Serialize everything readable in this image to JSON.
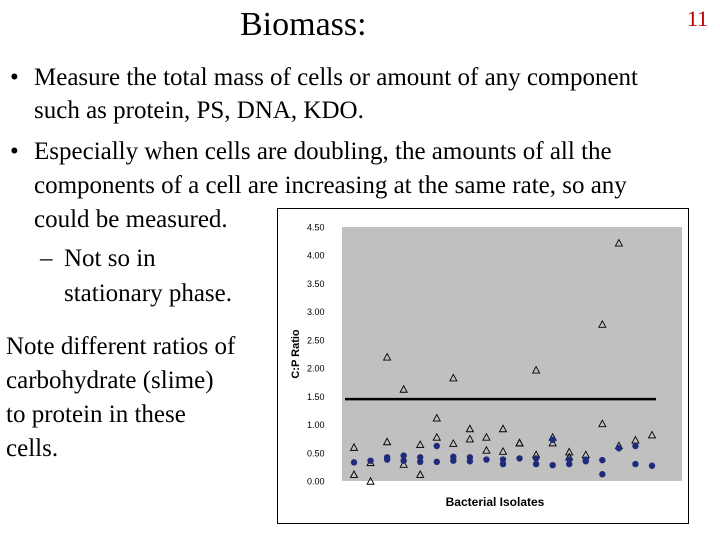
{
  "slide": {
    "title": "Biomass:",
    "number": "11",
    "bullets": [
      {
        "mark": "•",
        "lines": [
          "Measure the total mass of cells or amount of any component",
          "such as protein, PS, DNA, KDO."
        ]
      },
      {
        "mark": "•",
        "lines": [
          "Especially when cells are doubling, the amounts of all the",
          "components of a cell are increasing at the same rate, so any",
          "could be measured."
        ]
      },
      {
        "mark": "–",
        "lines": [
          "Not so in",
          "stationary phase."
        ]
      }
    ],
    "note": [
      "Note different ratios of",
      "carbohydrate (slime)",
      "to protein in these",
      "cells."
    ]
  },
  "chart_data": {
    "type": "scatter",
    "xlabel": "Bacterial Isolates",
    "ylabel": "C:P Ratio",
    "ylim": [
      0,
      4.5
    ],
    "yticks": [
      "0.00",
      "0.50",
      "1.00",
      "1.50",
      "2.00",
      "2.50",
      "3.00",
      "3.50",
      "4.00",
      "4.50"
    ],
    "xlim": [
      0,
      19
    ],
    "grid": false,
    "legend": "none",
    "plot_bg": "#c0c0c0",
    "reference_line": 1.45,
    "series": [
      {
        "marker": "triangle-open",
        "color": "#000000",
        "points": [
          [
            1,
            0.6
          ],
          [
            1,
            0.12
          ],
          [
            2,
            0.33
          ],
          [
            2,
            0.0
          ],
          [
            3,
            2.2
          ],
          [
            3,
            0.7
          ],
          [
            4,
            1.63
          ],
          [
            4,
            0.3
          ],
          [
            5,
            0.65
          ],
          [
            5,
            0.12
          ],
          [
            6,
            1.12
          ],
          [
            6,
            0.78
          ],
          [
            7,
            1.83
          ],
          [
            7,
            0.67
          ],
          [
            8,
            0.93
          ],
          [
            8,
            0.75
          ],
          [
            9,
            0.78
          ],
          [
            9,
            0.55
          ],
          [
            10,
            0.93
          ],
          [
            10,
            0.53
          ],
          [
            11,
            0.68
          ],
          [
            11,
            0.68
          ],
          [
            12,
            1.97
          ],
          [
            12,
            0.47
          ],
          [
            13,
            0.78
          ],
          [
            13,
            0.68
          ],
          [
            14,
            0.52
          ],
          [
            14,
            0.43
          ],
          [
            15,
            0.47
          ],
          [
            16,
            2.78
          ],
          [
            16,
            1.02
          ],
          [
            17,
            4.22
          ],
          [
            17,
            0.63
          ],
          [
            18,
            0.73
          ],
          [
            19,
            0.82
          ]
        ]
      },
      {
        "marker": "circle-filled",
        "color": "#1f2a7a",
        "points": [
          [
            1,
            0.33
          ],
          [
            2,
            0.36
          ],
          [
            3,
            0.42
          ],
          [
            3,
            0.38
          ],
          [
            4,
            0.45
          ],
          [
            4,
            0.36
          ],
          [
            5,
            0.42
          ],
          [
            5,
            0.34
          ],
          [
            6,
            0.62
          ],
          [
            6,
            0.34
          ],
          [
            7,
            0.43
          ],
          [
            7,
            0.36
          ],
          [
            8,
            0.42
          ],
          [
            8,
            0.35
          ],
          [
            9,
            0.38
          ],
          [
            10,
            0.3
          ],
          [
            10,
            0.38
          ],
          [
            11,
            0.4
          ],
          [
            12,
            0.4
          ],
          [
            12,
            0.3
          ],
          [
            13,
            0.28
          ],
          [
            13,
            0.73
          ],
          [
            14,
            0.3
          ],
          [
            14,
            0.38
          ],
          [
            15,
            0.38
          ],
          [
            15,
            0.35
          ],
          [
            16,
            0.12
          ],
          [
            16,
            0.37
          ],
          [
            17,
            0.58
          ],
          [
            18,
            0.62
          ],
          [
            18,
            0.3
          ],
          [
            19,
            0.27
          ]
        ]
      }
    ]
  }
}
